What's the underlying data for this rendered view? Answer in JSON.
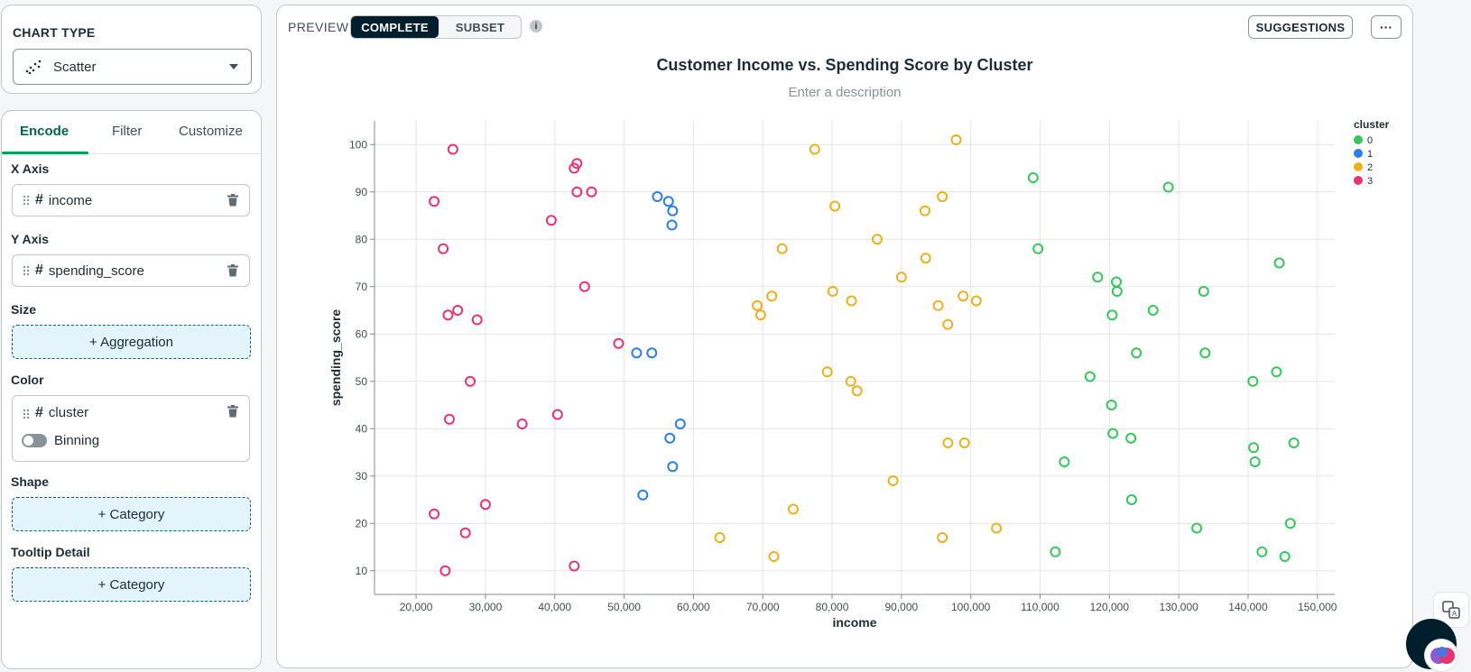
{
  "left_panel": {
    "chart_type_title": "CHART TYPE",
    "chart_type_value": "Scatter",
    "tabs": [
      "Encode",
      "Filter",
      "Customize"
    ],
    "x_axis": {
      "label": "X Axis",
      "field": "income"
    },
    "y_axis": {
      "label": "Y Axis",
      "field": "spending_score"
    },
    "size": {
      "label": "Size",
      "action": "+ Aggregation"
    },
    "color": {
      "label": "Color",
      "field": "cluster",
      "binning": "Binning"
    },
    "shape": {
      "label": "Shape",
      "action": "+ Category"
    },
    "tooltip": {
      "label": "Tooltip Detail",
      "action": "+ Category"
    }
  },
  "toolbar": {
    "preview_label": "PREVIEW",
    "complete_label": "COMPLETE",
    "subset_label": "SUBSET",
    "info_label": "i",
    "suggestions_label": "SUGGESTIONS",
    "more_label": "···"
  },
  "chart_header": {
    "title": "Customer Income vs. Spending Score by Cluster",
    "description_placeholder": "Enter a description"
  },
  "colors": {
    "0": "#34c759",
    "1": "#2b7de9",
    "2": "#ecb01f",
    "3": "#e8336f"
  },
  "chart_data": {
    "type": "scatter",
    "xlabel": "income",
    "ylabel": "spending_score",
    "xlim": [
      14000,
      152500
    ],
    "ylim": [
      5,
      105
    ],
    "xticks": [
      20000,
      30000,
      40000,
      50000,
      60000,
      70000,
      80000,
      90000,
      100000,
      110000,
      120000,
      130000,
      140000,
      150000
    ],
    "xtick_labels": [
      "20,000",
      "30,000",
      "40,000",
      "50,000",
      "60,000",
      "70,000",
      "80,000",
      "90,000",
      "100,000",
      "110,000",
      "120,000",
      "130,000",
      "140,000",
      "150,000"
    ],
    "yticks": [
      10,
      20,
      30,
      40,
      50,
      60,
      70,
      80,
      90,
      100
    ],
    "grid": true,
    "legend_title": "cluster",
    "legend_position": "top-right",
    "series": [
      {
        "name": "0",
        "points": [
          [
            109000,
            93
          ],
          [
            128500,
            91
          ],
          [
            109700,
            78
          ],
          [
            144500,
            75
          ],
          [
            118300,
            72
          ],
          [
            121000,
            71
          ],
          [
            121100,
            69
          ],
          [
            133600,
            69
          ],
          [
            126300,
            65
          ],
          [
            120400,
            64
          ],
          [
            123900,
            56
          ],
          [
            133800,
            56
          ],
          [
            117200,
            51
          ],
          [
            140700,
            50
          ],
          [
            144100,
            52
          ],
          [
            120300,
            45
          ],
          [
            120500,
            39
          ],
          [
            123100,
            38
          ],
          [
            140800,
            36
          ],
          [
            146600,
            37
          ],
          [
            113500,
            33
          ],
          [
            141000,
            33
          ],
          [
            123200,
            25
          ],
          [
            132600,
            19
          ],
          [
            146100,
            20
          ],
          [
            112200,
            14
          ],
          [
            142000,
            14
          ],
          [
            145300,
            13
          ]
        ]
      },
      {
        "name": "1",
        "points": [
          [
            54800,
            89
          ],
          [
            56400,
            88
          ],
          [
            57000,
            86
          ],
          [
            56900,
            83
          ],
          [
            51800,
            56
          ],
          [
            54000,
            56
          ],
          [
            58100,
            41
          ],
          [
            56600,
            38
          ],
          [
            57000,
            32
          ],
          [
            52700,
            26
          ]
        ]
      },
      {
        "name": "2",
        "points": [
          [
            77500,
            99
          ],
          [
            97900,
            101
          ],
          [
            80400,
            87
          ],
          [
            93400,
            86
          ],
          [
            95900,
            89
          ],
          [
            86500,
            80
          ],
          [
            72800,
            78
          ],
          [
            93500,
            76
          ],
          [
            90000,
            72
          ],
          [
            80100,
            69
          ],
          [
            82800,
            67
          ],
          [
            71300,
            68
          ],
          [
            69200,
            66
          ],
          [
            69700,
            64
          ],
          [
            95300,
            66
          ],
          [
            98900,
            68
          ],
          [
            100800,
            67
          ],
          [
            96700,
            62
          ],
          [
            79300,
            52
          ],
          [
            82700,
            50
          ],
          [
            83600,
            48
          ],
          [
            96700,
            37
          ],
          [
            99100,
            37
          ],
          [
            88800,
            29
          ],
          [
            74400,
            23
          ],
          [
            63800,
            17
          ],
          [
            71600,
            13
          ],
          [
            95900,
            17
          ],
          [
            103700,
            19
          ]
        ]
      },
      {
        "name": "3",
        "points": [
          [
            25300,
            99
          ],
          [
            43200,
            96
          ],
          [
            42800,
            95
          ],
          [
            43200,
            90
          ],
          [
            45300,
            90
          ],
          [
            22600,
            88
          ],
          [
            39500,
            84
          ],
          [
            23900,
            78
          ],
          [
            44300,
            70
          ],
          [
            26000,
            65
          ],
          [
            24600,
            64
          ],
          [
            28800,
            63
          ],
          [
            49200,
            58
          ],
          [
            27800,
            50
          ],
          [
            40400,
            43
          ],
          [
            35300,
            41
          ],
          [
            24800,
            42
          ],
          [
            22600,
            22
          ],
          [
            30000,
            24
          ],
          [
            27100,
            18
          ],
          [
            42800,
            11
          ],
          [
            24200,
            10
          ]
        ]
      }
    ]
  }
}
